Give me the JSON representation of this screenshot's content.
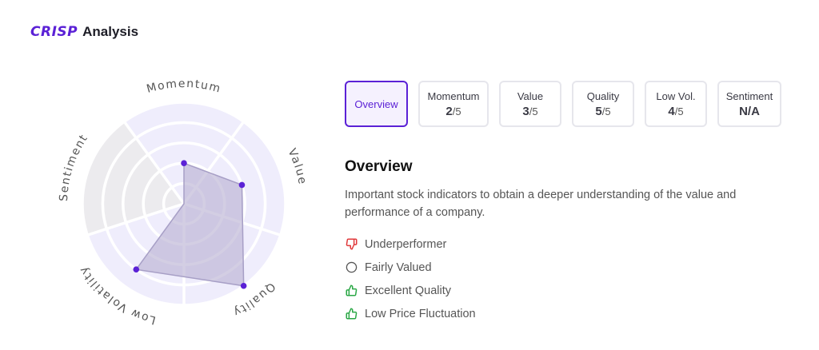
{
  "header": {
    "logo": "CRISP",
    "title": "Analysis"
  },
  "radar": {
    "axes": [
      "Momentum",
      "Value",
      "Quality",
      "Low Volatility",
      "Sentiment"
    ],
    "scores": [
      2,
      3,
      5,
      4,
      null
    ],
    "max": 5,
    "colors": {
      "ring": "#efedfc",
      "ring_inactive": "#ecebee",
      "fill": "#b5aed0",
      "stroke": "#a79fc6",
      "point": "#5b21d6"
    }
  },
  "tabs": [
    {
      "label": "Overview",
      "score": null,
      "denominator": null,
      "active": true
    },
    {
      "label": "Momentum",
      "score": "2",
      "denominator": "/5"
    },
    {
      "label": "Value",
      "score": "3",
      "denominator": "/5"
    },
    {
      "label": "Quality",
      "score": "5",
      "denominator": "/5"
    },
    {
      "label": "Low Vol.",
      "score": "4",
      "denominator": "/5"
    },
    {
      "label": "Sentiment",
      "score": "N/A",
      "denominator": null
    }
  ],
  "overview": {
    "title": "Overview",
    "description": "Important stock indicators to obtain a deeper understanding of the value and performance of a company.",
    "indicators": [
      {
        "label": "Underperformer",
        "icon": "thumbs-down-icon",
        "color": "#e0393b"
      },
      {
        "label": "Fairly Valued",
        "icon": "neutral-circle-icon",
        "color": "#555555"
      },
      {
        "label": "Excellent Quality",
        "icon": "thumbs-up-icon",
        "color": "#2aa745"
      },
      {
        "label": "Low Price Fluctuation",
        "icon": "thumbs-up-icon",
        "color": "#2aa745"
      }
    ]
  }
}
